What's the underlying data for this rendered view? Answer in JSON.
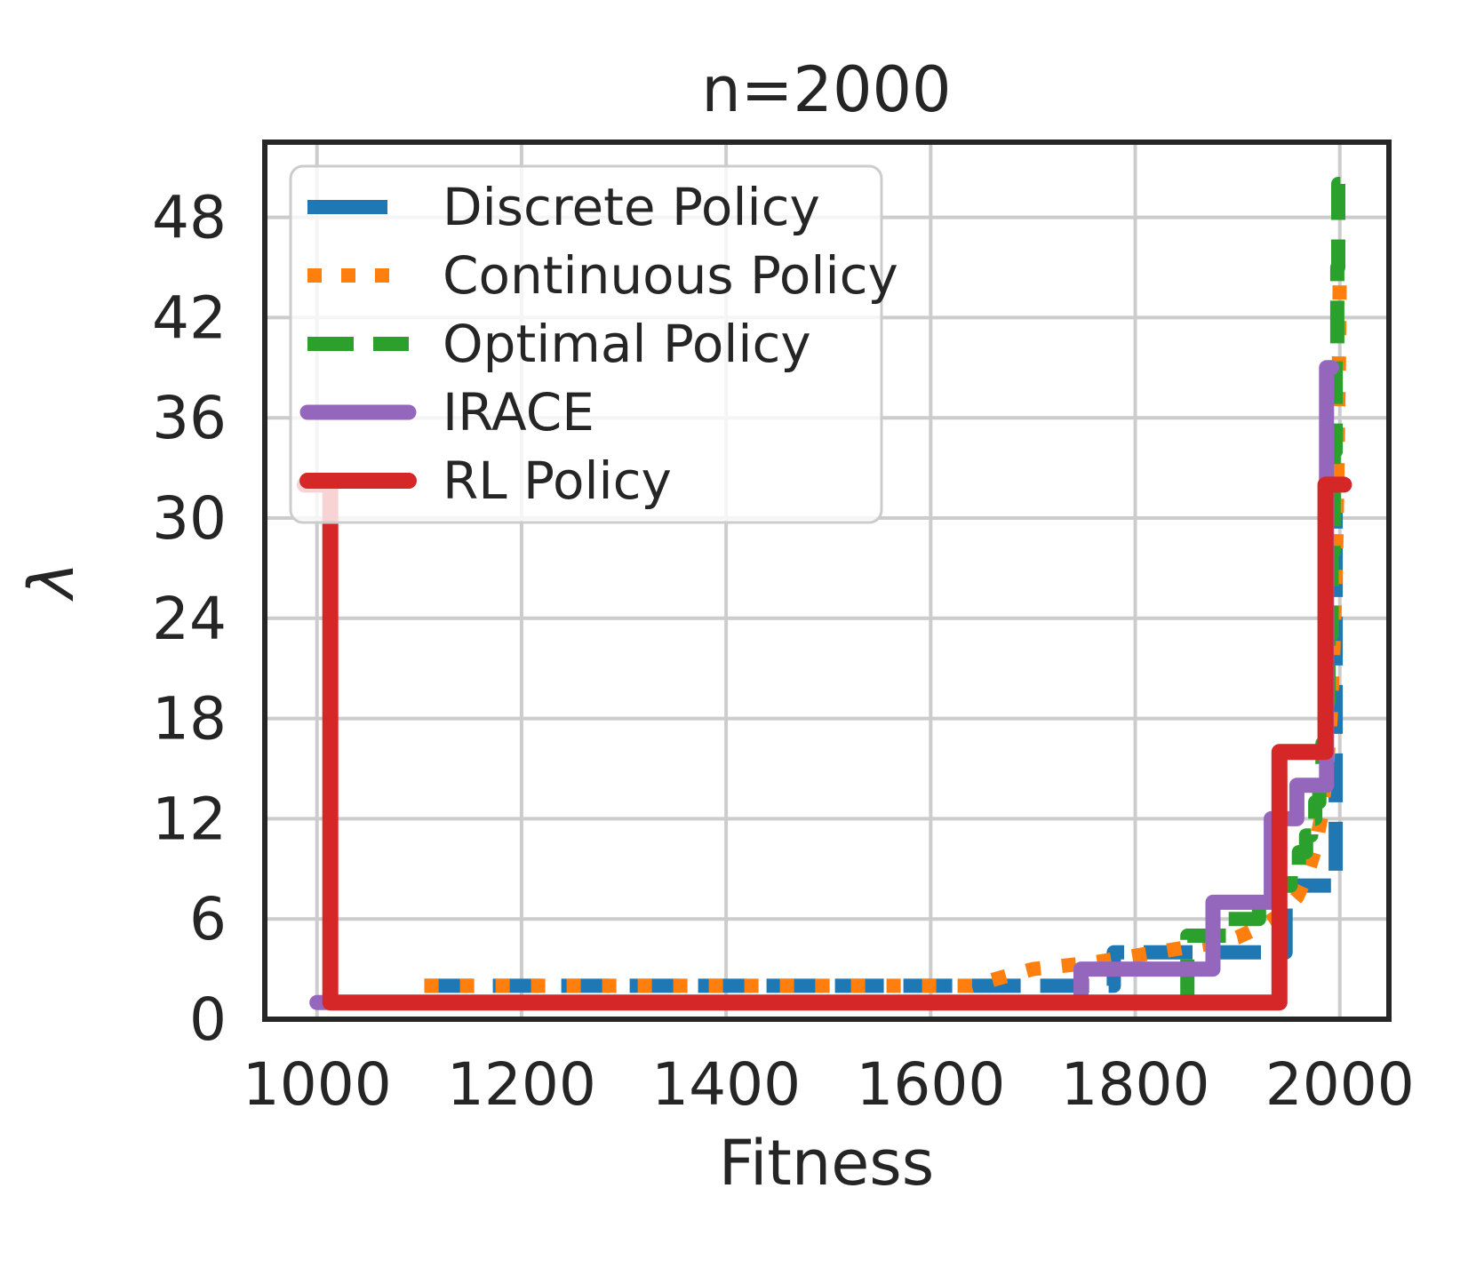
{
  "figure": {
    "title": "n=2000",
    "xlabel": "Fitness",
    "ylabel": "λ"
  },
  "style": {
    "grid_color": "#cccccc",
    "spine_color": "#262626",
    "text_color": "#252525",
    "legend_bg": "rgba(255,255,255,0.8)",
    "legend_border": "#cccccc",
    "series_colors": {
      "discrete": "#1f77b4",
      "continuous": "#ff7f0e",
      "optimal": "#2ca02c",
      "irace": "#9467bd",
      "rl": "#d62728"
    }
  },
  "legend": {
    "entries": [
      {
        "label": "Discrete Policy",
        "color": "#1f77b4",
        "dash": [
          90,
          40
        ],
        "cap": "butt",
        "width": 16
      },
      {
        "label": "Continuous Policy",
        "color": "#ff7f0e",
        "dash": [
          16,
          22
        ],
        "cap": "butt",
        "width": 16
      },
      {
        "label": "Optimal Policy",
        "color": "#2ca02c",
        "dash": [
          52,
          22
        ],
        "cap": "butt",
        "width": 16
      },
      {
        "label": "IRACE",
        "color": "#9467bd",
        "dash": null,
        "cap": "round",
        "width": 17
      },
      {
        "label": "RL Policy",
        "color": "#d62728",
        "dash": null,
        "cap": "round",
        "width": 18
      }
    ]
  },
  "chart_data": {
    "type": "line",
    "title": "n=2000",
    "xlabel": "Fitness",
    "ylabel": "λ",
    "xlim": [
      949,
      2048
    ],
    "ylim": [
      0,
      52.5
    ],
    "xticks": [
      1000,
      1200,
      1400,
      1600,
      1800,
      2000
    ],
    "yticks": [
      0,
      6,
      12,
      18,
      24,
      30,
      36,
      42,
      48
    ],
    "grid": true,
    "legend_position": "upper left",
    "series": [
      {
        "name": "Discrete Policy",
        "color": "#1f77b4",
        "linestyle": "dashed",
        "dash": [
          55,
          22
        ],
        "linewidth": 16,
        "cap": "butt",
        "points": [
          [
            1105,
            2
          ],
          [
            1779,
            2
          ],
          [
            1779,
            4
          ],
          [
            1947,
            4
          ],
          [
            1947,
            8
          ],
          [
            1996,
            8
          ],
          [
            1996,
            31
          ],
          [
            2001,
            31
          ]
        ]
      },
      {
        "name": "Continuous Policy",
        "color": "#ff7f0e",
        "linestyle": "dotted",
        "dash": [
          16,
          24
        ],
        "linewidth": 16,
        "cap": "butt",
        "points": [
          [
            1105,
            2
          ],
          [
            1640,
            2
          ],
          [
            1675,
            2.6
          ],
          [
            1700,
            3
          ],
          [
            1760,
            3.4
          ],
          [
            1820,
            4
          ],
          [
            1870,
            4.5
          ],
          [
            1900,
            4.9
          ],
          [
            1925,
            5.6
          ],
          [
            1945,
            6.4
          ],
          [
            1958,
            7.3
          ],
          [
            1968,
            8.6
          ],
          [
            1976,
            10.2
          ],
          [
            1982,
            12.2
          ],
          [
            1987,
            14.8
          ],
          [
            1991,
            18
          ],
          [
            1994,
            22.5
          ],
          [
            1996.5,
            28
          ],
          [
            1998,
            34
          ],
          [
            1999.3,
            40
          ],
          [
            2000,
            45
          ]
        ]
      },
      {
        "name": "Optimal Policy",
        "color": "#2ca02c",
        "linestyle": "dashed",
        "dash": [
          48,
          22
        ],
        "linewidth": 16,
        "cap": "butt",
        "points": [
          [
            1000,
            1
          ],
          [
            1851,
            1
          ],
          [
            1851,
            5
          ],
          [
            1890,
            5
          ],
          [
            1890,
            6
          ],
          [
            1921,
            6
          ],
          [
            1921,
            7
          ],
          [
            1940,
            7
          ],
          [
            1940,
            8
          ],
          [
            1952,
            8
          ],
          [
            1952,
            9
          ],
          [
            1960,
            9
          ],
          [
            1960,
            10
          ],
          [
            1967,
            10
          ],
          [
            1967,
            11
          ],
          [
            1972,
            11
          ],
          [
            1972,
            12
          ],
          [
            1976,
            12
          ],
          [
            1976,
            13
          ],
          [
            1980,
            13
          ],
          [
            1980,
            14.5
          ],
          [
            1983,
            14.5
          ],
          [
            1983,
            16.5
          ],
          [
            1986,
            16.5
          ],
          [
            1986,
            19
          ],
          [
            1989,
            19
          ],
          [
            1989,
            23
          ],
          [
            1992,
            23
          ],
          [
            1992,
            28
          ],
          [
            1994,
            28
          ],
          [
            1994,
            34
          ],
          [
            1996,
            34
          ],
          [
            1996,
            40
          ],
          [
            1997.5,
            40
          ],
          [
            1997.5,
            45
          ],
          [
            1998.5,
            45
          ],
          [
            1998.5,
            50
          ],
          [
            2000.5,
            50
          ]
        ]
      },
      {
        "name": "IRACE",
        "color": "#9467bd",
        "linestyle": "solid",
        "dash": null,
        "linewidth": 17,
        "cap": "round",
        "points": [
          [
            1000,
            1
          ],
          [
            1747,
            1
          ],
          [
            1747,
            3
          ],
          [
            1876,
            3
          ],
          [
            1876,
            7
          ],
          [
            1933,
            7
          ],
          [
            1933,
            12
          ],
          [
            1958,
            12
          ],
          [
            1958,
            14
          ],
          [
            1987,
            14
          ],
          [
            1987,
            39
          ],
          [
            1992,
            39
          ]
        ]
      },
      {
        "name": "RL Policy",
        "color": "#d62728",
        "linestyle": "solid",
        "dash": null,
        "linewidth": 18,
        "cap": "round",
        "points": [
          [
            988,
            32
          ],
          [
            1013,
            32
          ],
          [
            1013,
            1
          ],
          [
            1941,
            1
          ],
          [
            1941,
            16
          ],
          [
            1986,
            16
          ],
          [
            1986,
            32
          ],
          [
            2004,
            32
          ]
        ]
      }
    ]
  }
}
